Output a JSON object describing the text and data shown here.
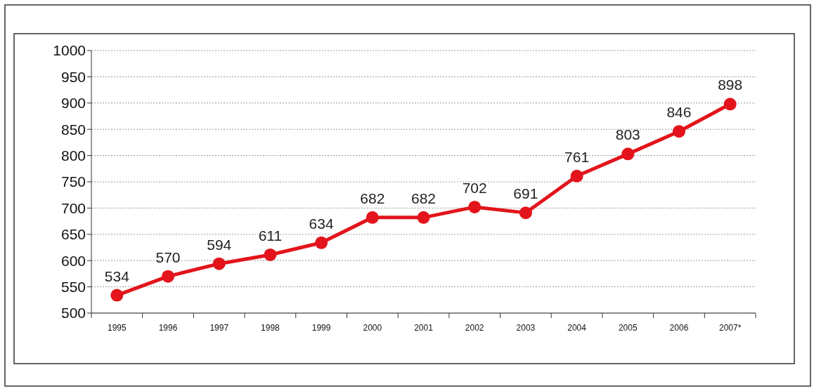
{
  "chart_data": {
    "type": "line",
    "categories": [
      "1995",
      "1996",
      "1997",
      "1998",
      "1999",
      "2000",
      "2001",
      "2002",
      "2003",
      "2004",
      "2005",
      "2006",
      "2007*"
    ],
    "series": [
      {
        "color": "#e3141b",
        "values": [
          534,
          570,
          594,
          611,
          634,
          682,
          682,
          702,
          691,
          761,
          803,
          846,
          898
        ]
      }
    ],
    "ylim": [
      500,
      1000
    ],
    "yticks": [
      500,
      550,
      600,
      650,
      700,
      750,
      800,
      850,
      900,
      950,
      1000
    ],
    "grid": "y",
    "marker": "circle",
    "line_style": "solid",
    "data_labels": true
  }
}
